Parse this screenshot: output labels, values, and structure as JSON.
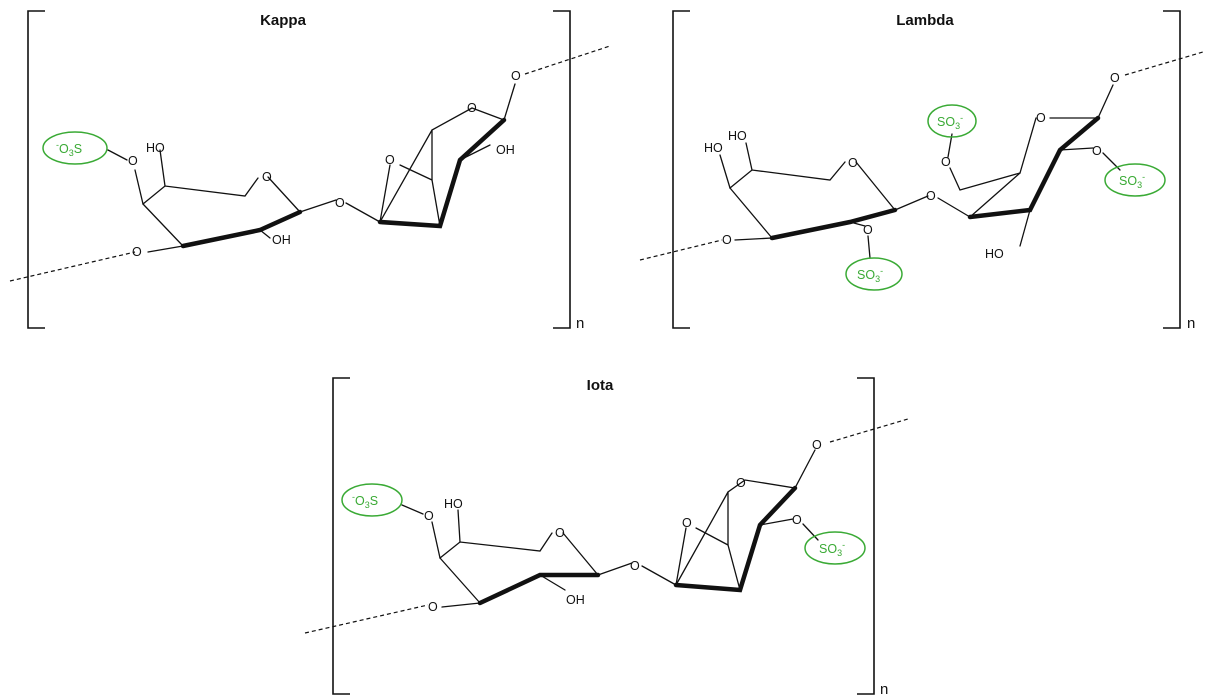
{
  "colors": {
    "sulfate": "#3aaa35",
    "ink": "#111111"
  },
  "panels": [
    {
      "title": "Kappa",
      "repeat": "n",
      "labels": {
        "oh6": "HO",
        "oh2": "OH",
        "oh_right": "OH",
        "ring_o": "O",
        "link_o": "O"
      },
      "sulfates": [
        "-O3S"
      ]
    },
    {
      "title": "Lambda",
      "repeat": "n",
      "labels": {
        "ho4": "HO",
        "ho6": "HO",
        "ho_right": "HO",
        "ring_o": "O",
        "link_o": "O"
      },
      "sulfates": [
        "SO3-",
        "SO3-",
        "SO3-"
      ]
    },
    {
      "title": "Iota",
      "repeat": "n",
      "labels": {
        "oh6": "HO",
        "oh2": "OH",
        "ring_o": "O",
        "link_o": "O"
      },
      "sulfates": [
        "-O3S",
        "SO3-"
      ]
    }
  ],
  "glyph": {
    "oxygen": "O",
    "sulfur": "S",
    "minus": "-",
    "three": "3",
    "so": "SO"
  }
}
